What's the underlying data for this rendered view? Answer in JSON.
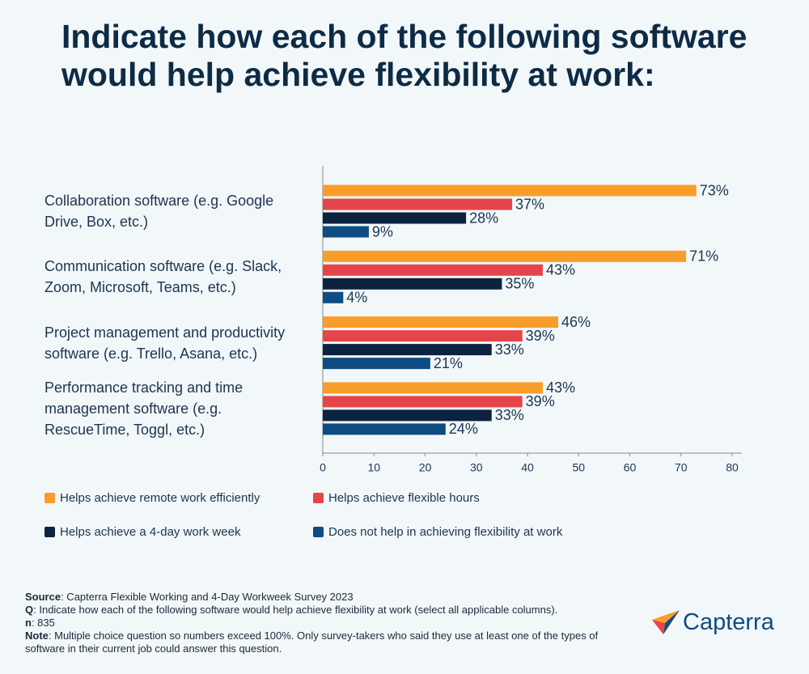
{
  "chart_data": {
    "type": "bar",
    "orientation": "horizontal",
    "title": "Indicate how each of the following software would help achieve flexibility at work:",
    "categories": [
      "Collaboration software (e.g. Google Drive, Box, etc.)",
      "Communication software (e.g. Slack, Zoom, Microsoft, Teams, etc.)",
      "Project management and productivity software (e.g. Trello, Asana, etc.)",
      "Performance tracking and time management software (e.g. RescueTime, Toggl, etc.)"
    ],
    "series": [
      {
        "name": "Helps achieve remote work efficiently",
        "color": "#f99d2a",
        "values": [
          73,
          71,
          46,
          43
        ],
        "value_labels": [
          "73%",
          "71%",
          "46%",
          "43%"
        ]
      },
      {
        "name": "Helps achieve flexible hours",
        "color": "#e5454a",
        "values": [
          37,
          43,
          39,
          39
        ],
        "value_labels": [
          "37%",
          "43%",
          "39%",
          "39%"
        ]
      },
      {
        "name": "Helps achieve a 4-day work week",
        "color": "#0c2340",
        "values": [
          28,
          35,
          33,
          33
        ],
        "value_labels": [
          "28%",
          "35%",
          "33%",
          "33%"
        ]
      },
      {
        "name": "Does not help in achieving flexibility at work",
        "color": "#0f4c81",
        "values": [
          9,
          4,
          21,
          24
        ],
        "value_labels": [
          "9%",
          "4%",
          "21%",
          "24%"
        ]
      }
    ],
    "xlim": [
      0,
      80
    ],
    "xticks": [
      0,
      10,
      20,
      30,
      40,
      50,
      60,
      70,
      80
    ]
  },
  "footer": {
    "source_label": "Source",
    "source": ": Capterra Flexible Working and 4-Day Workweek Survey 2023",
    "q_label": "Q",
    "q": ": Indicate how each of the following software would help achieve flexibility at work (select all applicable columns).",
    "n_label": "n",
    "n": ": 835",
    "note_label": "Note",
    "note": ": Multiple choice question so numbers exceed 100%. Only survey-takers who said they use at least one of the types of software in their current job could answer this question."
  },
  "logo": "Capterra"
}
